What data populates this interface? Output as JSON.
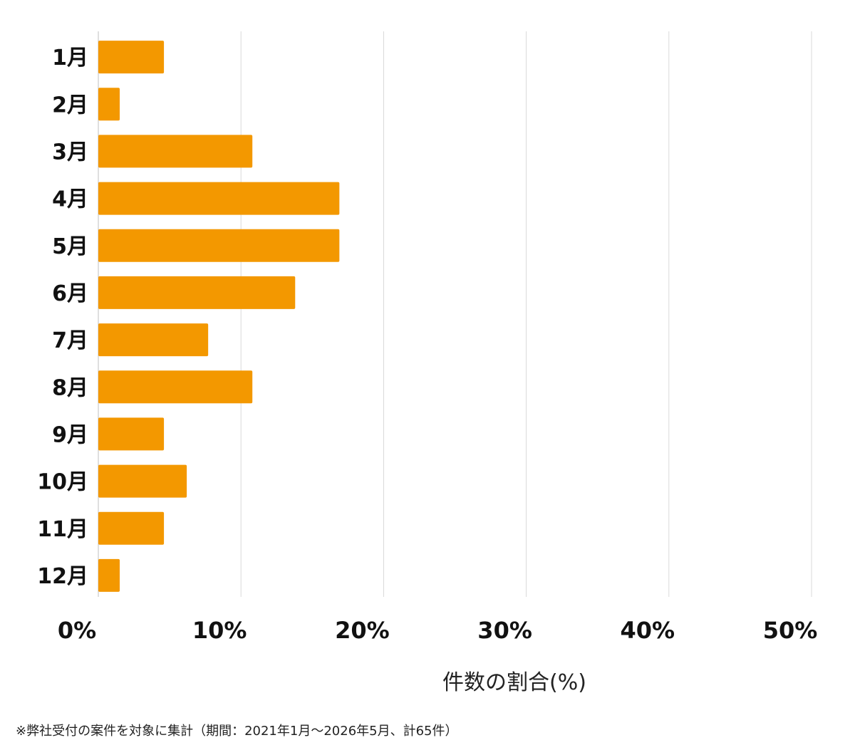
{
  "chart_data": {
    "type": "bar",
    "orientation": "horizontal",
    "categories": [
      "1月",
      "2月",
      "3月",
      "4月",
      "5月",
      "6月",
      "7月",
      "8月",
      "9月",
      "10月",
      "11月",
      "12月"
    ],
    "values": [
      4.6,
      1.5,
      10.8,
      16.9,
      16.9,
      13.8,
      7.7,
      10.8,
      4.6,
      6.2,
      4.6,
      1.5
    ],
    "xlabel": "件数の割合(%)",
    "ylabel": "",
    "xlim": [
      0,
      50
    ],
    "xticks": [
      0,
      10,
      20,
      30,
      40,
      50
    ],
    "tick_labels": [
      "0%",
      "10%",
      "20%",
      "30%",
      "40%",
      "50%"
    ],
    "grid": true,
    "bar_color": "#F39800",
    "grid_color": "#D9D9D9",
    "note": "※弊社受付の案件を対象に集計（期間：2021年1月〜2026年5月、計65件）"
  }
}
